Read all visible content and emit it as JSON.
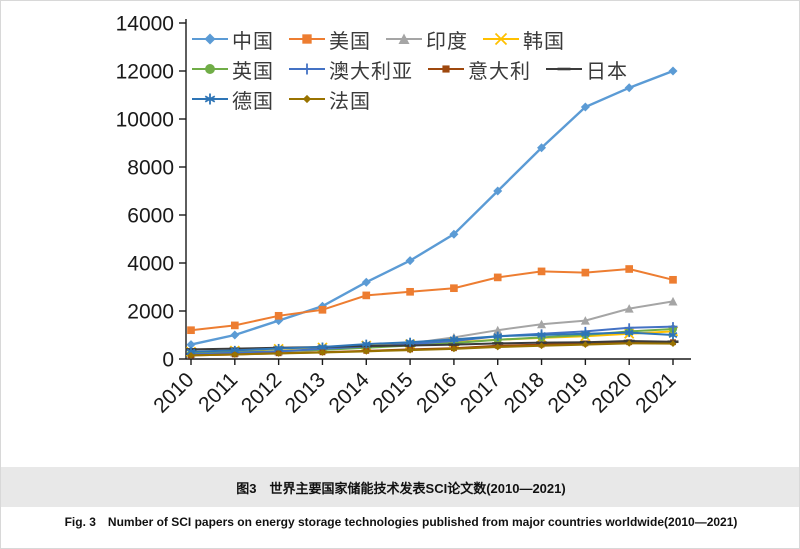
{
  "chart_data": {
    "type": "line",
    "x": [
      "2010",
      "2011",
      "2012",
      "2013",
      "2014",
      "2015",
      "2016",
      "2017",
      "2018",
      "2019",
      "2020",
      "2021"
    ],
    "series": [
      {
        "name": "中国",
        "color": "#5B9BD5",
        "marker": "diamond",
        "values": [
          600,
          1000,
          1600,
          2200,
          3200,
          4100,
          5200,
          7000,
          8800,
          10500,
          11300,
          12000
        ]
      },
      {
        "name": "美国",
        "color": "#ED7D31",
        "marker": "square",
        "values": [
          1200,
          1400,
          1800,
          2050,
          2650,
          2800,
          2950,
          3400,
          3650,
          3600,
          3750,
          3300
        ]
      },
      {
        "name": "印度",
        "color": "#A5A5A5",
        "marker": "triangle",
        "values": [
          200,
          260,
          320,
          380,
          500,
          650,
          900,
          1200,
          1450,
          1600,
          2100,
          2400
        ]
      },
      {
        "name": "韩国",
        "color": "#FFC000",
        "marker": "x",
        "values": [
          300,
          350,
          420,
          480,
          560,
          620,
          700,
          800,
          880,
          950,
          1050,
          1150
        ]
      },
      {
        "name": "英国",
        "color": "#70AD47",
        "marker": "circle",
        "values": [
          230,
          280,
          330,
          380,
          470,
          560,
          660,
          800,
          900,
          1000,
          1150,
          1250
        ]
      },
      {
        "name": "澳大利亚",
        "color": "#4472C4",
        "marker": "plus",
        "values": [
          200,
          260,
          320,
          420,
          520,
          620,
          750,
          950,
          1050,
          1150,
          1300,
          1350
        ]
      },
      {
        "name": "意大利",
        "color": "#9E480E",
        "marker": "smallsquare",
        "values": [
          150,
          190,
          240,
          280,
          340,
          400,
          450,
          550,
          600,
          650,
          700,
          700
        ]
      },
      {
        "name": "日本",
        "color": "#3B3B3B",
        "marker": "dash",
        "values": [
          400,
          430,
          470,
          500,
          540,
          560,
          600,
          650,
          680,
          700,
          750,
          720
        ]
      },
      {
        "name": "德国",
        "color": "#2E75B6",
        "marker": "asterisk",
        "values": [
          300,
          360,
          440,
          500,
          620,
          700,
          820,
          950,
          1000,
          1050,
          1100,
          1000
        ]
      },
      {
        "name": "法国",
        "color": "#997300",
        "marker": "smalldiamond",
        "values": [
          150,
          190,
          230,
          270,
          320,
          370,
          420,
          500,
          550,
          600,
          650,
          640
        ]
      }
    ],
    "title": "",
    "xlabel": "",
    "ylabel": "",
    "ylim": [
      0,
      14000
    ],
    "ytick_step": 2000,
    "grid": false,
    "legend_position": "top-left-inside",
    "legend_rows": [
      4,
      4,
      2
    ],
    "axis_color": "#1a1a1a"
  },
  "caption": {
    "zh": "图3　世界主要国家储能技术发表SCI论文数(2010—2021)",
    "en": "Fig. 3　Number of SCI papers on energy storage technologies published from major countries worldwide(2010—2021)"
  }
}
